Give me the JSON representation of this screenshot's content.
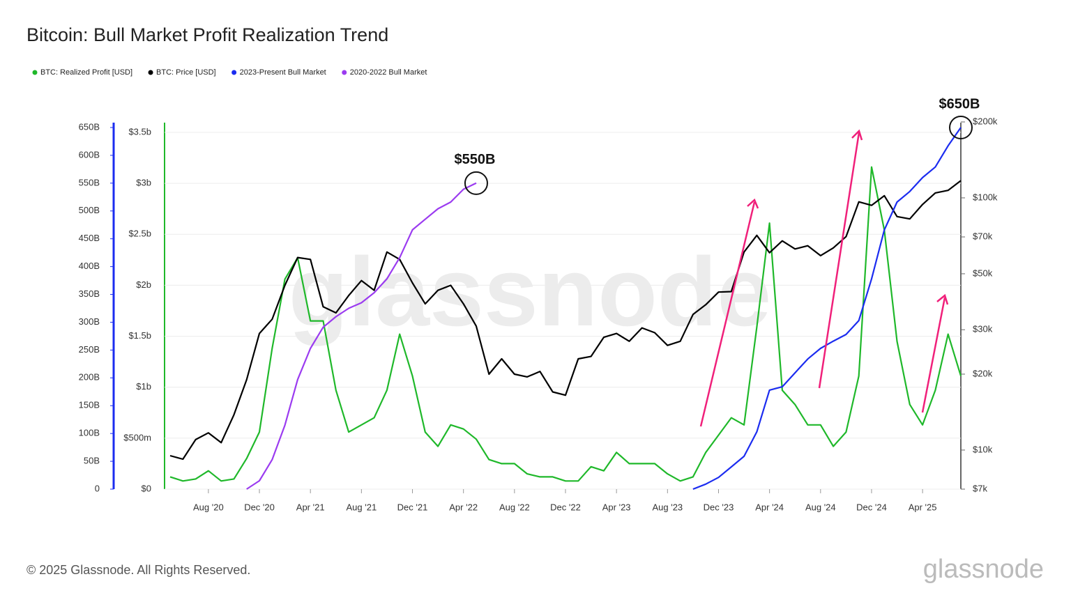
{
  "chart_data": {
    "type": "line",
    "title": "Bitcoin: Bull Market Profit Realization Trend",
    "watermark": "glassnode",
    "footer": {
      "copyright": "© 2025 Glassnode. All Rights Reserved.",
      "logo": "glassnode"
    },
    "annotations": [
      {
        "text": "$550B"
      },
      {
        "text": "$650B"
      }
    ],
    "grid": true,
    "legend": "top-left",
    "xlim": [
      "2020-05",
      "2025-07"
    ],
    "xticks": [
      {
        "value": "2020-08",
        "label": "Aug '20"
      },
      {
        "value": "2020-12",
        "label": "Dec '20"
      },
      {
        "value": "2021-04",
        "label": "Apr '21"
      },
      {
        "value": "2021-08",
        "label": "Aug '21"
      },
      {
        "value": "2021-12",
        "label": "Dec '21"
      },
      {
        "value": "2022-04",
        "label": "Apr '22"
      },
      {
        "value": "2022-08",
        "label": "Aug '22"
      },
      {
        "value": "2022-12",
        "label": "Dec '22"
      },
      {
        "value": "2023-04",
        "label": "Apr '23"
      },
      {
        "value": "2023-08",
        "label": "Aug '23"
      },
      {
        "value": "2023-12",
        "label": "Dec '23"
      },
      {
        "value": "2024-04",
        "label": "Apr '24"
      },
      {
        "value": "2024-08",
        "label": "Aug '24"
      },
      {
        "value": "2024-12",
        "label": "Dec '24"
      },
      {
        "value": "2025-04",
        "label": "Apr '25"
      }
    ],
    "ylim": [
      0,
      3.5
    ],
    "yticks": [
      {
        "value": 0,
        "label": "$0"
      },
      {
        "value": 0.5,
        "label": "$500m"
      },
      {
        "value": 1,
        "label": "$1b"
      },
      {
        "value": 1.5,
        "label": "$1.5b"
      },
      {
        "value": 2,
        "label": "$2b"
      },
      {
        "value": 2.5,
        "label": "$2.5b"
      },
      {
        "value": 3,
        "label": "$3b"
      },
      {
        "value": 3.5,
        "label": "$3.5b"
      }
    ],
    "y2scale": "log",
    "y2lim": [
      7000,
      200000
    ],
    "y2ticks": [
      {
        "value": 7000,
        "label": "$7k"
      },
      {
        "value": 10000,
        "label": "$10k"
      },
      {
        "value": 20000,
        "label": "$20k"
      },
      {
        "value": 30000,
        "label": "$30k"
      },
      {
        "value": 50000,
        "label": "$50k"
      },
      {
        "value": 70000,
        "label": "$70k"
      },
      {
        "value": 100000,
        "label": "$100k"
      },
      {
        "value": 200000,
        "label": "$200k"
      }
    ],
    "y3lim": [
      0,
      650
    ],
    "y3ticks": [
      0,
      {
        "value": 50,
        "label": "50B"
      },
      {
        "value": 100,
        "label": "100B"
      },
      {
        "value": 150,
        "label": "150B"
      },
      {
        "value": 200,
        "label": "200B"
      },
      {
        "value": 250,
        "label": "250B"
      },
      {
        "value": 300,
        "label": "300B"
      },
      {
        "value": 350,
        "label": "350B"
      },
      {
        "value": 400,
        "label": "400B"
      },
      {
        "value": 450,
        "label": "450B"
      },
      {
        "value": 500,
        "label": "500B"
      },
      {
        "value": 550,
        "label": "550B"
      },
      {
        "value": 600,
        "label": "600B"
      },
      {
        "value": 650,
        "label": "650B"
      }
    ],
    "x": [
      "2020-05",
      "2020-06",
      "2020-07",
      "2020-08",
      "2020-09",
      "2020-10",
      "2020-11",
      "2020-12",
      "2021-01",
      "2021-02",
      "2021-03",
      "2021-04",
      "2021-05",
      "2021-06",
      "2021-07",
      "2021-08",
      "2021-09",
      "2021-10",
      "2021-11",
      "2021-12",
      "2022-01",
      "2022-02",
      "2022-03",
      "2022-04",
      "2022-05",
      "2022-06",
      "2022-07",
      "2022-08",
      "2022-09",
      "2022-10",
      "2022-11",
      "2022-12",
      "2023-01",
      "2023-02",
      "2023-03",
      "2023-04",
      "2023-05",
      "2023-06",
      "2023-07",
      "2023-08",
      "2023-09",
      "2023-10",
      "2023-11",
      "2023-12",
      "2024-01",
      "2024-02",
      "2024-03",
      "2024-04",
      "2024-05",
      "2024-06",
      "2024-07",
      "2024-08",
      "2024-09",
      "2024-10",
      "2024-11",
      "2024-12",
      "2025-01",
      "2025-02",
      "2025-03",
      "2025-04",
      "2025-05",
      "2025-06",
      "2025-07"
    ],
    "series": [
      {
        "name": "BTC: Realized Profit [USD]",
        "color": "#1fb82a",
        "axis": "y",
        "values": [
          0.12,
          0.08,
          0.1,
          0.18,
          0.08,
          0.1,
          0.3,
          0.56,
          1.38,
          2.06,
          2.27,
          1.65,
          1.65,
          0.97,
          0.56,
          0.63,
          0.7,
          0.97,
          1.52,
          1.11,
          0.56,
          0.42,
          0.63,
          0.59,
          0.49,
          0.29,
          0.25,
          0.25,
          0.15,
          0.12,
          0.12,
          0.08,
          0.08,
          0.22,
          0.18,
          0.36,
          0.25,
          0.25,
          0.25,
          0.15,
          0.08,
          0.12,
          0.36,
          0.53,
          0.7,
          0.63,
          1.59,
          2.61,
          0.97,
          0.83,
          0.63,
          0.63,
          0.42,
          0.56,
          1.11,
          3.16,
          2.54,
          1.45,
          0.83,
          0.63,
          0.97,
          1.52,
          1.11
        ]
      },
      {
        "name": "BTC: Price [USD]",
        "color": "#000000",
        "axis": "y2",
        "values": [
          9500,
          9200,
          11000,
          11700,
          10700,
          13800,
          19000,
          29000,
          33000,
          45000,
          58000,
          57000,
          37000,
          35000,
          41000,
          47000,
          43000,
          61000,
          57000,
          46000,
          38000,
          43000,
          45000,
          38000,
          31000,
          20000,
          23000,
          20000,
          19500,
          20500,
          17000,
          16500,
          23000,
          23500,
          28000,
          29000,
          27000,
          30500,
          29200,
          26000,
          27000,
          34500,
          37700,
          42300,
          42500,
          61000,
          71000,
          60600,
          67500,
          62700,
          64600,
          59000,
          63300,
          70200,
          96400,
          93400,
          102000,
          84300,
          82500,
          94200,
          104600,
          107100,
          117000
        ]
      },
      {
        "name": "2023-Present Bull Market",
        "color": "#1b2cf0",
        "axis": "y3",
        "values": [
          null,
          null,
          null,
          null,
          null,
          null,
          null,
          null,
          null,
          null,
          null,
          null,
          null,
          null,
          null,
          null,
          null,
          null,
          null,
          null,
          null,
          null,
          null,
          null,
          null,
          null,
          null,
          null,
          null,
          null,
          null,
          null,
          null,
          null,
          null,
          null,
          null,
          null,
          null,
          null,
          null,
          0,
          9,
          21,
          40,
          59,
          103,
          178,
          184,
          209,
          234,
          253,
          266,
          278,
          303,
          378,
          466,
          516,
          535,
          560,
          579,
          617,
          650
        ]
      },
      {
        "name": "2020-2022 Bull Market",
        "color": "#9b3bf0",
        "axis": "y3",
        "values": [
          null,
          null,
          null,
          null,
          null,
          null,
          0,
          15,
          53,
          115,
          197,
          253,
          291,
          310,
          325,
          335,
          353,
          378,
          416,
          466,
          485,
          504,
          516,
          539,
          550,
          null,
          null,
          null,
          null,
          null,
          null,
          null,
          null,
          null,
          null,
          null,
          null,
          null,
          null,
          null,
          null,
          null,
          null,
          null,
          null,
          null,
          null,
          null,
          null,
          null,
          null,
          null,
          null,
          null,
          null,
          null,
          null,
          null,
          null,
          null,
          null,
          null,
          null
        ]
      }
    ]
  }
}
